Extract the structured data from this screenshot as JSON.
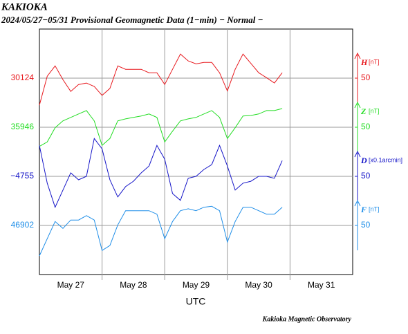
{
  "chart_data": {
    "type": "line",
    "title": "KAKIOKA",
    "subtitle": "2024/05/27−05/31  Provisional Geomagnetic Data (1−min)  − Normal −",
    "x_label": "UTC",
    "footer": "Kakioka Magnetic Observatory",
    "xlim": [
      0,
      5
    ],
    "xticks": [
      {
        "value": 0.5,
        "label": "May 27"
      },
      {
        "value": 1.5,
        "label": "May 28"
      },
      {
        "value": 2.5,
        "label": "May 29"
      },
      {
        "value": 3.5,
        "label": "May 30"
      },
      {
        "value": 4.5,
        "label": "May 31"
      }
    ],
    "xgrid": [
      1,
      2,
      3,
      4
    ],
    "x": [
      0,
      0.125,
      0.25,
      0.375,
      0.5,
      0.625,
      0.75,
      0.875,
      1,
      1.125,
      1.25,
      1.375,
      1.5,
      1.625,
      1.75,
      1.875,
      2,
      2.125,
      2.25,
      2.375,
      2.5,
      2.625,
      2.75,
      2.875,
      3,
      3.125,
      3.25,
      3.375,
      3.5,
      3.625,
      3.75,
      3.875
    ],
    "grid": true,
    "series": [
      {
        "name": "H",
        "unit": "[nT]",
        "color": "#e8191e",
        "ylim": [
          -350,
          150
        ],
        "yticks": [
          50
        ],
        "baseline": 30124,
        "values": [
          -5,
          54,
          75,
          47,
          23,
          37,
          40,
          33,
          15,
          29,
          75,
          68,
          68,
          68,
          61,
          61,
          37,
          68,
          99,
          85,
          79,
          82,
          82,
          61,
          24,
          68,
          99,
          80,
          61,
          51,
          40,
          61
        ]
      },
      {
        "name": "Z",
        "unit": "[nT]",
        "color": "#22dd22",
        "ylim": [
          -250,
          250
        ],
        "yticks": [
          50
        ],
        "baseline": 35946,
        "values": [
          11,
          20,
          49,
          63,
          70,
          77,
          84,
          63,
          13,
          27,
          63,
          67,
          70,
          73,
          77,
          70,
          20,
          42,
          63,
          67,
          70,
          77,
          84,
          70,
          27,
          49,
          73,
          74,
          77,
          84,
          84,
          88
        ]
      },
      {
        "name": "D",
        "unit": "[x0.1arcmin]",
        "color": "#1515c8",
        "ylim": [
          -150,
          350
        ],
        "yticks": [
          50
        ],
        "baseline": {
          "value": -4755,
          "label": "−4755"
        },
        "values": [
          113,
          36,
          -13,
          22,
          57,
          43,
          50,
          127,
          106,
          43,
          8,
          29,
          40,
          57,
          71,
          113,
          85,
          15,
          1,
          46,
          50,
          64,
          74,
          113,
          71,
          22,
          36,
          40,
          50,
          50,
          46,
          82
        ]
      },
      {
        "name": "F",
        "unit": "[nT]",
        "color": "#1e8ee8",
        "ylim": [
          -50,
          450
        ],
        "yticks": [
          50
        ],
        "baseline": 46902,
        "values": [
          -12,
          23,
          58,
          44,
          61,
          61,
          70,
          61,
          -1,
          9,
          51,
          80,
          80,
          80,
          80,
          73,
          23,
          58,
          80,
          84,
          80,
          87,
          89,
          80,
          16,
          58,
          87,
          87,
          80,
          73,
          73,
          87
        ]
      }
    ]
  }
}
